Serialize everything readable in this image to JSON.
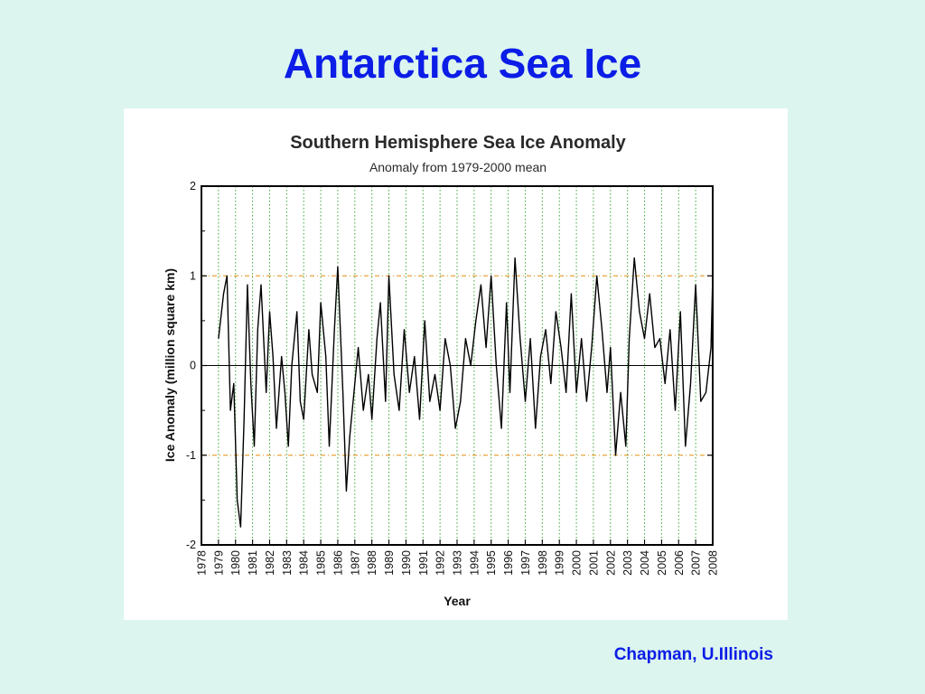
{
  "slide": {
    "title": "Antarctica Sea Ice",
    "credit": "Chapman, U.Illinois"
  },
  "colors": {
    "background": "#dcf5ef",
    "title_text": "#0b1de6",
    "series_line": "#000000",
    "year_gridline": "#3aa83a",
    "reference_line": "#e8a33a"
  },
  "chart_data": {
    "type": "line",
    "title": "Southern Hemisphere Sea Ice Anomaly",
    "subtitle": "Anomaly from 1979-2000 mean",
    "xlabel": "Year",
    "ylabel": "Ice Anomaly (million square km)",
    "xlim": [
      1978,
      2008
    ],
    "ylim": [
      -2,
      2
    ],
    "x_ticks": [
      "1978",
      "1979",
      "1980",
      "1981",
      "1982",
      "1983",
      "1984",
      "1985",
      "1986",
      "1987",
      "1988",
      "1989",
      "1990",
      "1991",
      "1992",
      "1993",
      "1994",
      "1995",
      "1996",
      "1997",
      "1998",
      "1999",
      "2000",
      "2001",
      "2002",
      "2003",
      "2004",
      "2005",
      "2006",
      "2007",
      "2008"
    ],
    "y_ticks": [
      "-2",
      "-1",
      "0",
      "1",
      "2"
    ],
    "reference_lines": [
      1,
      -1
    ],
    "zero_line": 0,
    "grid": "vertical dotted at each year",
    "legend": "none",
    "series": [
      {
        "x": [
          1979.0,
          1979.3,
          1979.5,
          1979.7,
          1979.9,
          1980.1,
          1980.3,
          1980.5,
          1980.7,
          1980.9,
          1981.1,
          1981.3,
          1981.5,
          1981.8,
          1982.0,
          1982.2,
          1982.4,
          1982.7,
          1982.9,
          1983.1,
          1983.3,
          1983.6,
          1983.8,
          1984.0,
          1984.3,
          1984.5,
          1984.8,
          1985.0,
          1985.3,
          1985.5,
          1985.8,
          1986.0,
          1986.3,
          1986.5,
          1986.7,
          1986.9,
          1987.2,
          1987.5,
          1987.8,
          1988.0,
          1988.3,
          1988.5,
          1988.8,
          1989.0,
          1989.3,
          1989.6,
          1989.9,
          1990.2,
          1990.5,
          1990.8,
          1991.1,
          1991.4,
          1991.7,
          1992.0,
          1992.3,
          1992.6,
          1992.9,
          1993.2,
          1993.5,
          1993.8,
          1994.1,
          1994.4,
          1994.7,
          1995.0,
          1995.3,
          1995.6,
          1995.9,
          1996.1,
          1996.4,
          1996.7,
          1997.0,
          1997.3,
          1997.6,
          1997.9,
          1998.2,
          1998.5,
          1998.8,
          1999.1,
          1999.4,
          1999.7,
          2000.0,
          2000.3,
          2000.6,
          2000.9,
          2001.2,
          2001.5,
          2001.8,
          2002.0,
          2002.3,
          2002.6,
          2002.9,
          2003.1,
          2003.4,
          2003.7,
          2004.0,
          2004.3,
          2004.6,
          2004.9,
          2005.2,
          2005.5,
          2005.8,
          2006.1,
          2006.4,
          2006.7,
          2007.0,
          2007.3,
          2007.6,
          2007.9,
          2008.0
        ],
        "values": [
          0.3,
          0.8,
          1.0,
          -0.5,
          -0.2,
          -1.5,
          -1.8,
          -0.6,
          0.9,
          -0.2,
          -0.9,
          0.4,
          0.9,
          -0.3,
          0.6,
          0.1,
          -0.7,
          0.1,
          -0.3,
          -0.9,
          0.0,
          0.6,
          -0.4,
          -0.6,
          0.4,
          -0.1,
          -0.3,
          0.7,
          0.1,
          -0.9,
          0.4,
          1.1,
          -0.3,
          -1.4,
          -0.8,
          -0.4,
          0.2,
          -0.5,
          -0.1,
          -0.6,
          0.3,
          0.7,
          -0.4,
          1.0,
          -0.1,
          -0.5,
          0.4,
          -0.3,
          0.1,
          -0.6,
          0.5,
          -0.4,
          -0.1,
          -0.5,
          0.3,
          0.0,
          -0.7,
          -0.4,
          0.3,
          0.0,
          0.5,
          0.9,
          0.2,
          1.0,
          0.0,
          -0.7,
          0.7,
          -0.3,
          1.2,
          0.3,
          -0.4,
          0.3,
          -0.7,
          0.1,
          0.4,
          -0.2,
          0.6,
          0.2,
          -0.3,
          0.8,
          -0.3,
          0.3,
          -0.4,
          0.2,
          1.0,
          0.4,
          -0.3,
          0.2,
          -1.0,
          -0.3,
          -0.9,
          0.3,
          1.2,
          0.6,
          0.3,
          0.8,
          0.2,
          0.3,
          -0.2,
          0.4,
          -0.5,
          0.6,
          -0.9,
          -0.2,
          0.9,
          -0.4,
          -0.3,
          0.2,
          1.0
        ]
      }
    ]
  }
}
